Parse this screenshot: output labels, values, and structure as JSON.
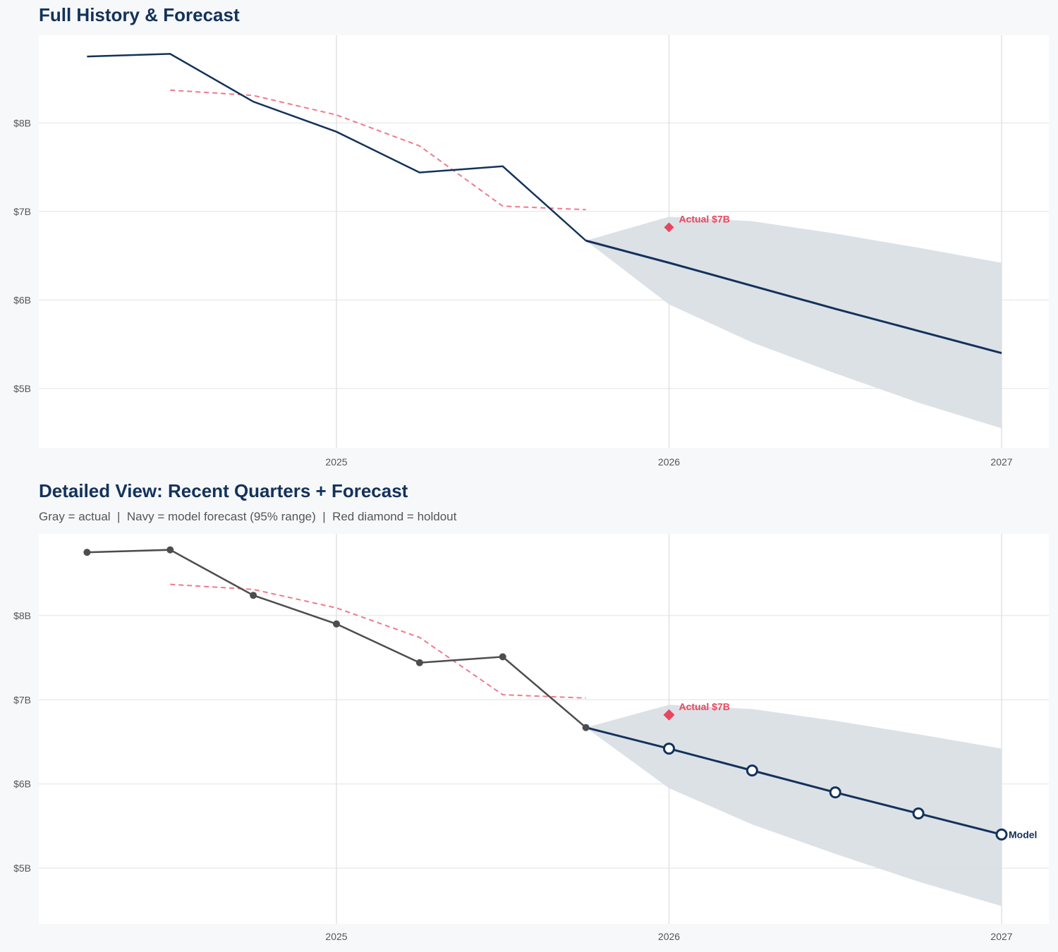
{
  "colors": {
    "navy": "#13325b",
    "actual_gray": "#4d4d4d",
    "red": "#e8465f",
    "band": "#dadfe5",
    "grid": "#e2e2e2"
  },
  "chart_data": [
    {
      "type": "line",
      "title": "Full History & Forecast",
      "subtitle": "",
      "ylim": [
        4.33,
        8.99
      ],
      "yticks": [
        5,
        6,
        7,
        8
      ],
      "ytick_labels": [
        "$5B",
        "$6B",
        "$7B",
        "$8B"
      ],
      "xticks": [
        "2025",
        "2026",
        "2027"
      ],
      "grid": true,
      "actual": {
        "x": [
          "2024-04",
          "2024-07",
          "2024-10",
          "2025-01",
          "2025-04",
          "2025-07",
          "2025-10"
        ],
        "y": [
          8.75,
          8.78,
          8.24,
          7.9,
          7.44,
          7.51,
          6.67
        ],
        "color": "#13325b",
        "markers": false
      },
      "forecast": {
        "x": [
          "2025-10",
          "2026-01",
          "2026-04",
          "2026-07",
          "2026-10",
          "2027-01"
        ],
        "y": [
          6.67,
          6.42,
          6.16,
          5.9,
          5.65,
          5.4
        ],
        "markers": false
      },
      "band": {
        "upper": [
          6.67,
          6.94,
          6.89,
          6.75,
          6.59,
          6.42
        ],
        "lower": [
          6.67,
          5.95,
          5.52,
          5.17,
          4.84,
          4.55
        ]
      },
      "dashed": {
        "x": [
          "2024-07",
          "2024-10",
          "2025-01",
          "2025-04",
          "2025-07",
          "2025-10"
        ],
        "y": [
          8.37,
          8.31,
          8.09,
          7.74,
          7.06,
          7.02
        ]
      },
      "holdout": {
        "x": "2026-01",
        "y": 6.82,
        "label": "Actual $7B"
      }
    },
    {
      "type": "line",
      "title": "Detailed View: Recent Quarters + Forecast",
      "subtitle": "Gray = actual  |  Navy = model forecast (95% range)  |  Red diamond = holdout",
      "ylim": [
        4.34,
        8.97
      ],
      "yticks": [
        5,
        6,
        7,
        8
      ],
      "ytick_labels": [
        "$5B",
        "$6B",
        "$7B",
        "$8B"
      ],
      "xticks": [
        "2025",
        "2026",
        "2027"
      ],
      "grid": true,
      "actual": {
        "x": [
          "2024-04",
          "2024-07",
          "2024-10",
          "2025-01",
          "2025-04",
          "2025-07",
          "2025-10"
        ],
        "y": [
          8.75,
          8.78,
          8.24,
          7.9,
          7.44,
          7.51,
          6.67
        ],
        "color": "#4d4d4d",
        "markers": true
      },
      "forecast": {
        "x": [
          "2025-10",
          "2026-01",
          "2026-04",
          "2026-07",
          "2026-10",
          "2027-01"
        ],
        "y": [
          6.67,
          6.42,
          6.16,
          5.9,
          5.65,
          5.4
        ],
        "markers": true,
        "end_label": "Model"
      },
      "band": {
        "upper": [
          6.67,
          6.94,
          6.89,
          6.75,
          6.59,
          6.42
        ],
        "lower": [
          6.67,
          5.95,
          5.52,
          5.17,
          4.84,
          4.55
        ]
      },
      "dashed": {
        "x": [
          "2024-07",
          "2024-10",
          "2025-01",
          "2025-04",
          "2025-07",
          "2025-10"
        ],
        "y": [
          8.37,
          8.31,
          8.09,
          7.74,
          7.06,
          7.02
        ]
      },
      "holdout": {
        "x": "2026-01",
        "y": 6.82,
        "label": "Actual $7B"
      }
    }
  ]
}
